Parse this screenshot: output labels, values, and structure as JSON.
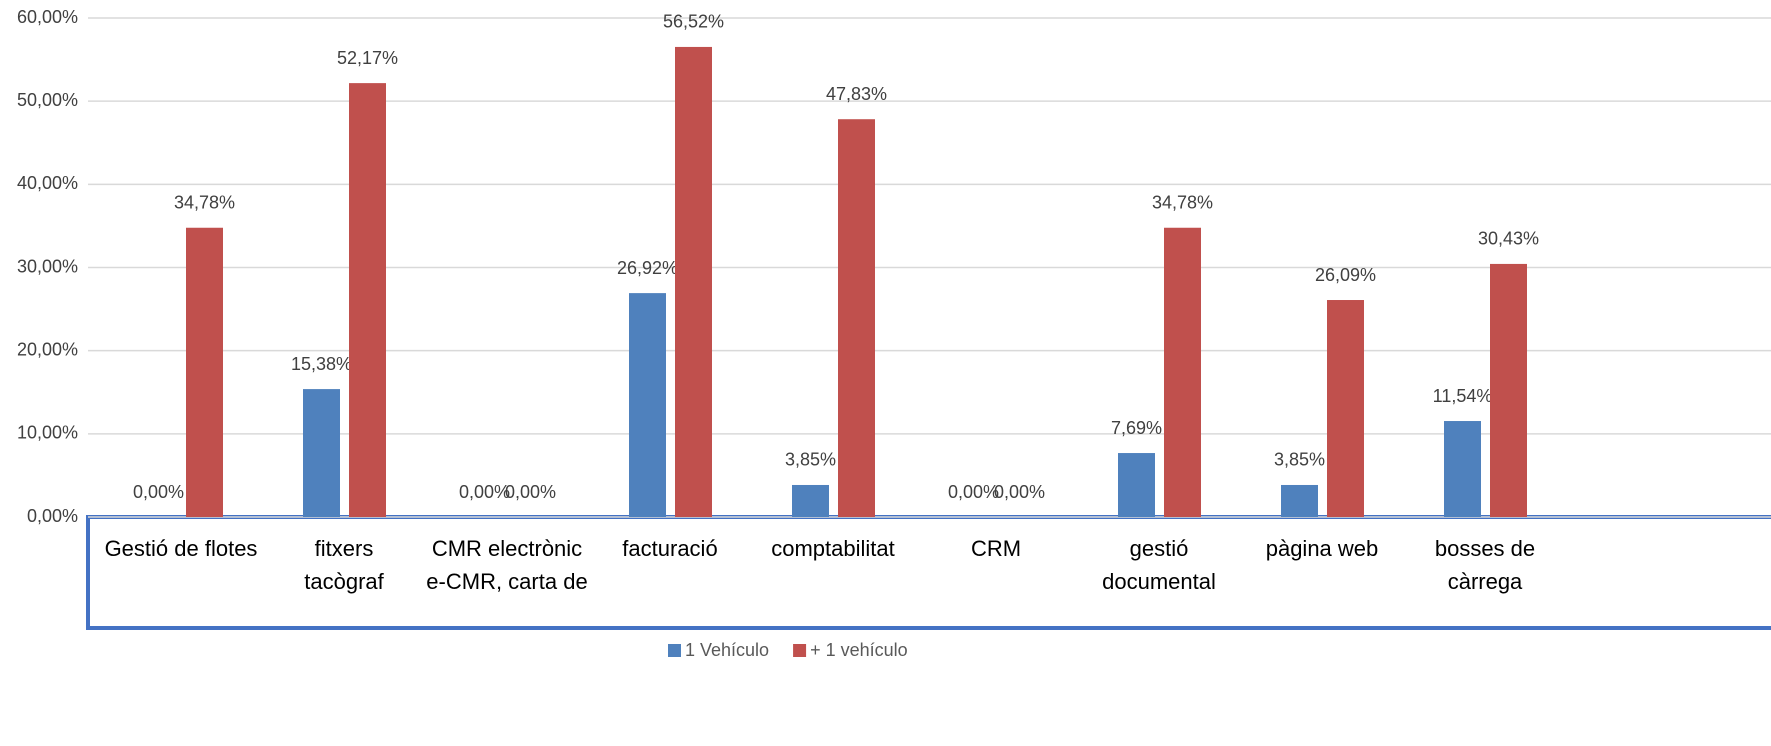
{
  "chart_data": {
    "type": "bar",
    "categories": [
      [
        "Gestió de flotes"
      ],
      [
        "fitxers",
        "tacògraf"
      ],
      [
        "CMR electrònic",
        "e-CMR, carta de"
      ],
      [
        "facturació"
      ],
      [
        "comptabilitat"
      ],
      [
        "CRM"
      ],
      [
        "gestió",
        "documental"
      ],
      [
        "pàgina web"
      ],
      [
        "bosses de",
        "càrrega"
      ]
    ],
    "series": [
      {
        "name": "1 Vehículo",
        "color": "#4f81bd",
        "values": [
          0,
          15.38,
          0,
          26.92,
          3.85,
          0,
          7.69,
          3.85,
          11.54
        ],
        "value_labels": [
          "0,00%",
          "15,38%",
          "0,00%",
          "26,92%",
          "3,85%",
          "0,00%",
          "7,69%",
          "3,85%",
          "11,54%"
        ]
      },
      {
        "name": "+ 1 vehículo",
        "color": "#c0504d",
        "values": [
          34.78,
          52.17,
          0,
          56.52,
          47.83,
          0,
          34.78,
          26.09,
          30.43
        ],
        "value_labels": [
          "34,78%",
          "52,17%",
          "0,00%",
          "56,52%",
          "47,83%",
          "0,00%",
          "34,78%",
          "26,09%",
          "30,43%"
        ]
      }
    ],
    "ylim": [
      0,
      60
    ],
    "yticks": [
      {
        "value": 0,
        "label": "0,00%"
      },
      {
        "value": 10,
        "label": "10,00%"
      },
      {
        "value": 20,
        "label": "20,00%"
      },
      {
        "value": 30,
        "label": "30,00%"
      },
      {
        "value": 40,
        "label": "40,00%"
      },
      {
        "value": 50,
        "label": "50,00%"
      },
      {
        "value": 60,
        "label": "60,00%"
      }
    ],
    "grid": true,
    "legend": "bottom"
  }
}
